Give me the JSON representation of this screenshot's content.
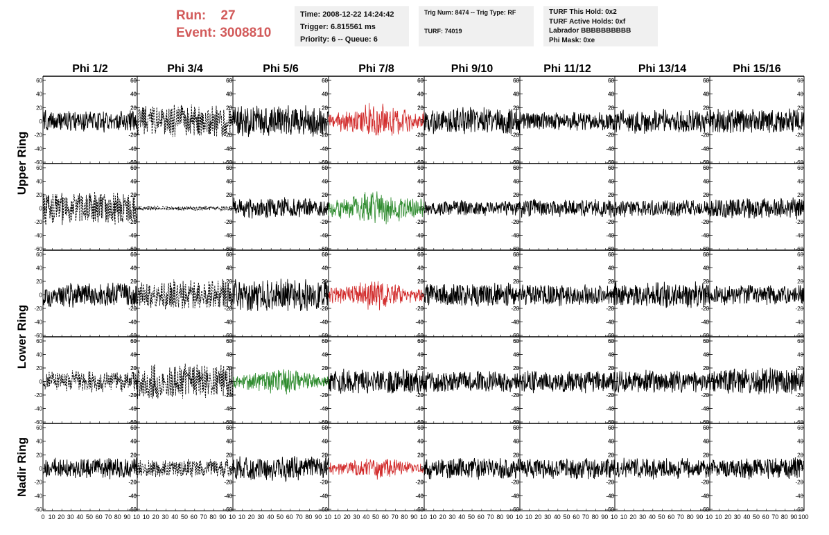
{
  "header": {
    "run_label": "Run:",
    "run_value": "27",
    "event_label": "Event:",
    "event_value": "3008810"
  },
  "info": {
    "box1": [
      "Time: 2008-12-22 14:24:42",
      "Trigger: 6.815561 ms",
      "Priority: 6 -- Queue: 6"
    ],
    "box2": [
      "Trig Num: 8474 -- Trig Type: RF",
      "TURF: 74019"
    ],
    "box3": [
      "TURF This Hold: 0x2",
      "TURF Active Holds: 0xf",
      "Labrador BBBBBBBBBB",
      "Phi Mask: 0xe"
    ]
  },
  "colors": {
    "trace_default": "#000000",
    "trace_red": "#d22c2c",
    "trace_green": "#2e8b2e"
  },
  "chart_data": {
    "type": "line",
    "columns": [
      "Phi 1/2",
      "Phi 3/4",
      "Phi 5/6",
      "Phi 7/8",
      "Phi 9/10",
      "Phi 11/12",
      "Phi 13/14",
      "Phi 15/16"
    ],
    "row_groups": [
      {
        "label": "Upper Ring",
        "rows": [
          0,
          1
        ]
      },
      {
        "label": "Lower Ring",
        "rows": [
          2,
          3
        ]
      },
      {
        "label": "Nadir Ring",
        "rows": [
          4
        ]
      }
    ],
    "xlim": [
      0,
      100
    ],
    "ylim": [
      -60,
      60
    ],
    "y_ticks": [
      -60,
      -40,
      -20,
      0,
      20,
      40,
      60
    ],
    "x_ticks": [
      0,
      10,
      20,
      30,
      40,
      50,
      60,
      70,
      80,
      90,
      100
    ],
    "x_tick_labels_first_panel": [
      "0",
      "10",
      "20",
      "30",
      "40",
      "50",
      "60",
      "70",
      "80",
      "90",
      "10"
    ],
    "x_tick_labels_other_panels": [
      "10",
      "20",
      "30",
      "40",
      "50",
      "60",
      "70",
      "80",
      "90",
      "10"
    ],
    "x_tick_label_last_panel_end": "100",
    "traces": [
      [
        {
          "style": "solid",
          "color": "black",
          "amp": 14
        },
        {
          "style": "dashed",
          "color": "black",
          "amp": 22
        },
        {
          "style": "solid",
          "color": "black",
          "amp": 20
        },
        {
          "style": "solid",
          "color": "red",
          "amp": 24
        },
        {
          "style": "solid",
          "color": "black",
          "amp": 18
        },
        {
          "style": "solid",
          "color": "black",
          "amp": 12
        },
        {
          "style": "solid",
          "color": "black",
          "amp": 16
        },
        {
          "style": "solid",
          "color": "black",
          "amp": 16
        }
      ],
      [
        {
          "style": "dashed",
          "color": "black",
          "amp": 22
        },
        {
          "style": "dashed",
          "color": "black",
          "amp": 3
        },
        {
          "style": "solid",
          "color": "black",
          "amp": 14
        },
        {
          "style": "solid",
          "color": "green",
          "amp": 24
        },
        {
          "style": "solid",
          "color": "black",
          "amp": 10
        },
        {
          "style": "solid",
          "color": "black",
          "amp": 12
        },
        {
          "style": "solid",
          "color": "black",
          "amp": 11
        },
        {
          "style": "solid",
          "color": "black",
          "amp": 14
        }
      ],
      [
        {
          "style": "solid",
          "color": "black",
          "amp": 16
        },
        {
          "style": "dashed",
          "color": "black",
          "amp": 20
        },
        {
          "style": "solid",
          "color": "black",
          "amp": 22
        },
        {
          "style": "solid",
          "color": "red",
          "amp": 20
        },
        {
          "style": "solid",
          "color": "black",
          "amp": 16
        },
        {
          "style": "solid",
          "color": "black",
          "amp": 14
        },
        {
          "style": "solid",
          "color": "black",
          "amp": 17
        },
        {
          "style": "solid",
          "color": "black",
          "amp": 13
        }
      ],
      [
        {
          "style": "dashed",
          "color": "black",
          "amp": 14
        },
        {
          "style": "dashed",
          "color": "black",
          "amp": 24
        },
        {
          "style": "solid",
          "color": "green",
          "amp": 18
        },
        {
          "style": "solid",
          "color": "black",
          "amp": 16
        },
        {
          "style": "solid",
          "color": "black",
          "amp": 14
        },
        {
          "style": "solid",
          "color": "black",
          "amp": 15
        },
        {
          "style": "solid",
          "color": "black",
          "amp": 15
        },
        {
          "style": "solid",
          "color": "black",
          "amp": 18
        }
      ],
      [
        {
          "style": "solid",
          "color": "black",
          "amp": 14
        },
        {
          "style": "dashed",
          "color": "black",
          "amp": 12
        },
        {
          "style": "solid",
          "color": "black",
          "amp": 16
        },
        {
          "style": "solid",
          "color": "red",
          "amp": 14
        },
        {
          "style": "solid",
          "color": "black",
          "amp": 14
        },
        {
          "style": "solid",
          "color": "black",
          "amp": 14
        },
        {
          "style": "solid",
          "color": "black",
          "amp": 14
        },
        {
          "style": "solid",
          "color": "black",
          "amp": 14
        }
      ]
    ]
  }
}
